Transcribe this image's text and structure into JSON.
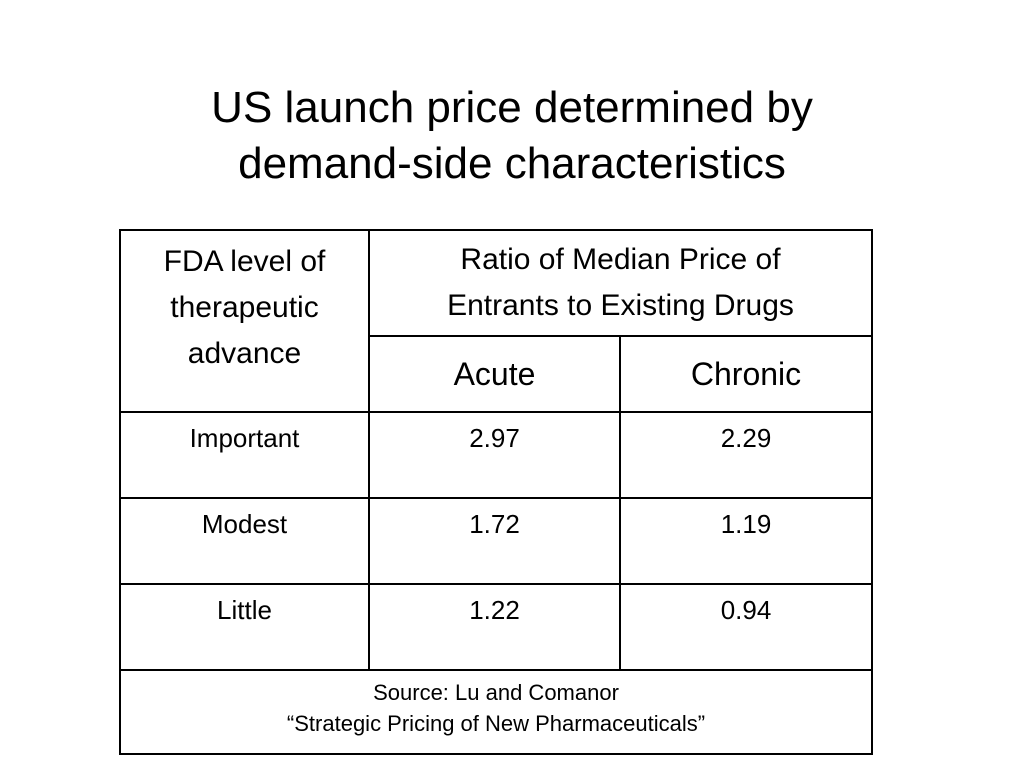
{
  "slide": {
    "title_lines": [
      "US launch price determined by",
      "demand-side characteristics"
    ]
  },
  "table": {
    "first_header_lines": [
      "FDA level of",
      "therapeutic",
      "advance"
    ],
    "group_header_lines": [
      "Ratio of Median Price of",
      "Entrants to Existing Drugs"
    ],
    "subheaders": [
      "Acute",
      "Chronic"
    ],
    "rows": [
      {
        "level": "Important",
        "acute": "2.97",
        "chronic": "2.29"
      },
      {
        "level": "Modest",
        "acute": "1.72",
        "chronic": "1.19"
      },
      {
        "level": "Little",
        "acute": "1.22",
        "chronic": "0.94"
      }
    ],
    "source_lines": [
      "Source: Lu and Comanor",
      "“Strategic Pricing of New Pharmaceuticals”"
    ]
  }
}
